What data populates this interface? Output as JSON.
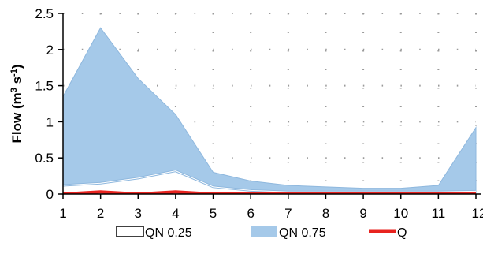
{
  "chart_data": {
    "type": "area",
    "x": [
      1,
      2,
      3,
      4,
      5,
      6,
      7,
      8,
      9,
      10,
      11,
      12
    ],
    "xticks": [
      "1",
      "2",
      "3",
      "4",
      "5",
      "6",
      "7",
      "8",
      "9",
      "10",
      "11",
      "12"
    ],
    "yticks": [
      "0",
      "0.5",
      "1",
      "1.5",
      "2",
      "2.5"
    ],
    "ylim": [
      0,
      2.5
    ],
    "xlim": [
      1,
      12
    ],
    "ylabel": "Flow (m³ s⁻¹)",
    "ylabel_main": "Flow (m",
    "ylabel_sup1": "3",
    "ylabel_mid": " s",
    "ylabel_sup2": "-1",
    "ylabel_end": ")",
    "grid": true,
    "legend_position": "bottom",
    "series": [
      {
        "name": "QN 0.25",
        "values": [
          0.12,
          0.15,
          0.22,
          0.32,
          0.1,
          0.05,
          0.03,
          0.03,
          0.03,
          0.03,
          0.03,
          0.04
        ],
        "color": "#ffffff",
        "stroke": "#000000"
      },
      {
        "name": "QN 0.75",
        "values": [
          1.35,
          2.3,
          1.6,
          1.1,
          0.3,
          0.18,
          0.12,
          0.1,
          0.08,
          0.08,
          0.12,
          0.92
        ],
        "color": "#a5c9e9"
      },
      {
        "name": "Q",
        "values": [
          0.0,
          0.03,
          0.0,
          0.03,
          0.0,
          0.0,
          0.0,
          0.0,
          0.0,
          0.0,
          0.0,
          0.0
        ],
        "color": "#e8231f"
      }
    ]
  },
  "legend": {
    "items": [
      {
        "label": "QN 0.25"
      },
      {
        "label": "QN 0.75"
      },
      {
        "label": "Q"
      }
    ]
  }
}
